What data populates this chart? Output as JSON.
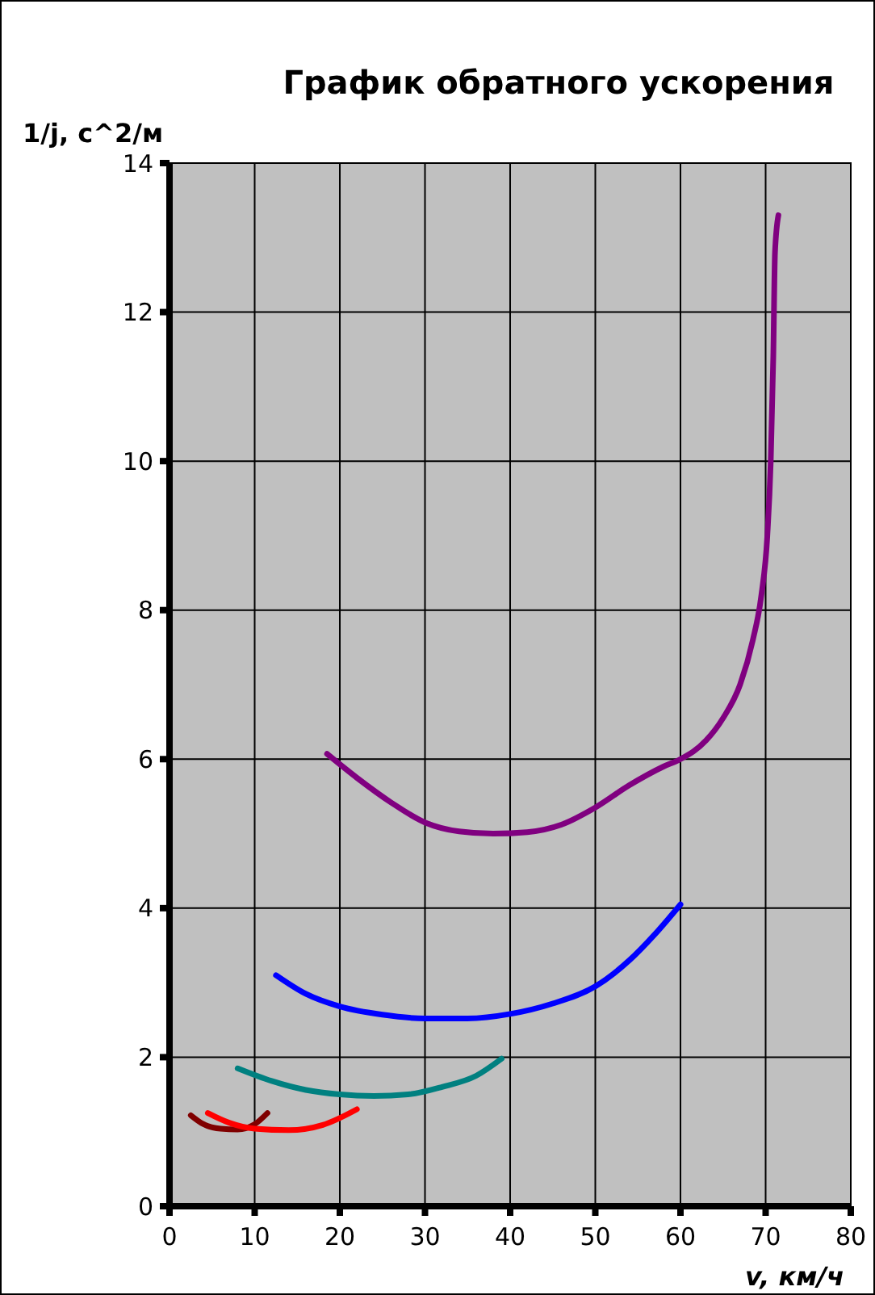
{
  "chart_data": {
    "type": "line",
    "title": "График обратного ускорения",
    "xlabel": "v, км/ч",
    "ylabel": "1/j, с^2/м",
    "xlim": [
      0,
      80
    ],
    "xticks": [
      0,
      10,
      20,
      30,
      40,
      50,
      60,
      70,
      80
    ],
    "ylim": [
      0,
      14
    ],
    "yticks": [
      0,
      2,
      4,
      6,
      8,
      10,
      12,
      14
    ],
    "grid": true,
    "marker": "none",
    "line_style": "solid",
    "series": [
      {
        "color": "#800000",
        "x": [
          2.5,
          4,
          6,
          8,
          10,
          11.5
        ],
        "values": [
          1.22,
          1.1,
          1.04,
          1.03,
          1.1,
          1.25
        ]
      },
      {
        "color": "#ff0000",
        "x": [
          4.5,
          7,
          10,
          14,
          18,
          22
        ],
        "values": [
          1.25,
          1.12,
          1.04,
          1.02,
          1.09,
          1.3
        ]
      },
      {
        "color": "#008080",
        "x": [
          8,
          12,
          16,
          20,
          24,
          28,
          32,
          36,
          39
        ],
        "values": [
          1.85,
          1.68,
          1.56,
          1.5,
          1.48,
          1.5,
          1.6,
          1.75,
          1.98
        ]
      },
      {
        "color": "#0000ff",
        "x": [
          12.5,
          16,
          20,
          25,
          30,
          35,
          40,
          45,
          50,
          54,
          57,
          60
        ],
        "values": [
          3.1,
          2.85,
          2.68,
          2.57,
          2.52,
          2.52,
          2.58,
          2.72,
          2.95,
          3.3,
          3.65,
          4.05
        ]
      },
      {
        "color": "#800080",
        "x": [
          18.5,
          22,
          26,
          30,
          34,
          38,
          42,
          46,
          50,
          54,
          58,
          60,
          63,
          65,
          67,
          68.5,
          69.5,
          70.2,
          70.6,
          70.9,
          71.1,
          71.5
        ],
        "values": [
          6.07,
          5.75,
          5.42,
          5.15,
          5.03,
          5.0,
          5.02,
          5.12,
          5.35,
          5.65,
          5.9,
          6.0,
          6.25,
          6.55,
          7.0,
          7.6,
          8.2,
          9.0,
          10.0,
          11.4,
          12.8,
          13.3
        ]
      }
    ]
  }
}
